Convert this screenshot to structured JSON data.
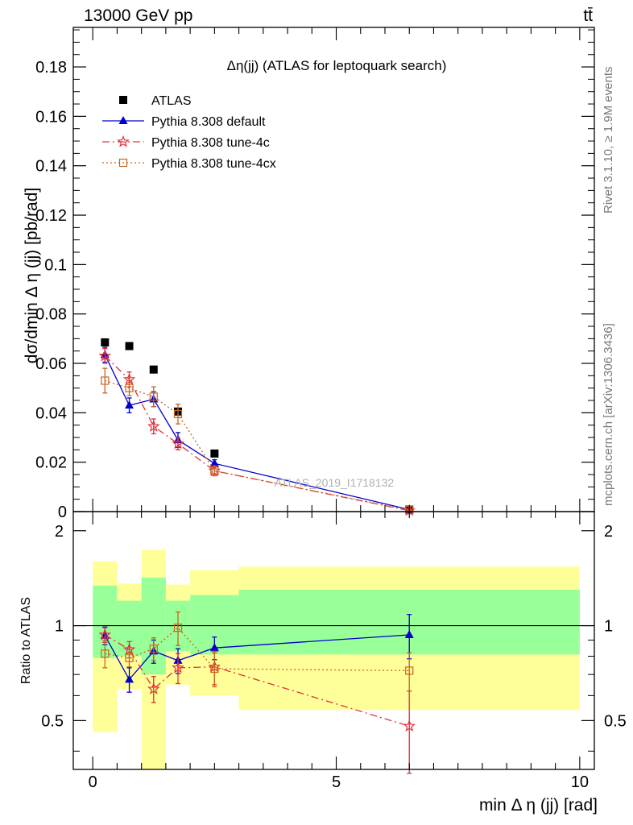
{
  "header": {
    "energy_label": "13000 GeV pp",
    "process_label": "tt̄",
    "plot_title": "Δη(jj) (ATLAS for leptoquark search)",
    "rivet_label": "Rivet 3.1.10, ≥ 1.9M events",
    "mcplots_label": "mcplots.cern.ch [arXiv:1306.3436]",
    "analysis_watermark": "ATLAS_2019_I1718132"
  },
  "colors": {
    "atlas": "#000000",
    "default": "#0000cc",
    "tune4c": "#e0303a",
    "tune4cx": "#c8641e",
    "band_outer": "#ffff99",
    "band_inner": "#99ff99"
  },
  "chart_data": [
    {
      "type": "line",
      "panel": "main",
      "xlabel": "",
      "ylabel": "dσ/dmin Δ η (jj) [pb/rad]",
      "title": "Δη(jj) (ATLAS for leptoquark search)",
      "xlim": [
        -0.4,
        10.3
      ],
      "ylim": [
        0,
        0.196
      ],
      "y_ticks": [
        {
          "v": 0.02,
          "label": "0.02"
        },
        {
          "v": 0.04,
          "label": "0.04"
        },
        {
          "v": 0.06,
          "label": "0.06"
        },
        {
          "v": 0.08,
          "label": "0.08"
        },
        {
          "v": 0.1,
          "label": "0.1"
        },
        {
          "v": 0.12,
          "label": "0.12"
        },
        {
          "v": 0.14,
          "label": "0.14"
        },
        {
          "v": 0.16,
          "label": "0.16"
        },
        {
          "v": 0.18,
          "label": "0.18"
        },
        {
          "v": 0,
          "label": "0"
        }
      ],
      "legend_position": "top-left",
      "series": [
        {
          "name": "ATLAS",
          "key": "atlas",
          "style": "marker",
          "points": [
            {
              "x": 0.25,
              "y": 0.0685,
              "err": 0
            },
            {
              "x": 0.75,
              "y": 0.067,
              "err": 0
            },
            {
              "x": 1.25,
              "y": 0.0575,
              "err": 0
            },
            {
              "x": 1.75,
              "y": 0.0405,
              "err": 0
            },
            {
              "x": 2.5,
              "y": 0.0235,
              "err": 0
            },
            {
              "x": 6.5,
              "y": 0.0008,
              "err": 0
            }
          ]
        },
        {
          "name": "Pythia 8.308 default",
          "key": "default",
          "style": "solid",
          "points": [
            {
              "x": 0.25,
              "y": 0.0635,
              "err": 0.003
            },
            {
              "x": 0.75,
              "y": 0.043,
              "err": 0.003
            },
            {
              "x": 1.25,
              "y": 0.0455,
              "err": 0.003
            },
            {
              "x": 1.75,
              "y": 0.029,
              "err": 0.003
            },
            {
              "x": 2.5,
              "y": 0.0195,
              "err": 0.0015
            },
            {
              "x": 6.5,
              "y": 0.0008,
              "err": 0.0001
            }
          ]
        },
        {
          "name": "Pythia 8.308 tune-4c",
          "key": "tune4c",
          "style": "dashdot",
          "points": [
            {
              "x": 0.25,
              "y": 0.063,
              "err": 0.003
            },
            {
              "x": 0.75,
              "y": 0.0535,
              "err": 0.003
            },
            {
              "x": 1.25,
              "y": 0.0345,
              "err": 0.003
            },
            {
              "x": 1.75,
              "y": 0.0275,
              "err": 0.0025
            },
            {
              "x": 2.5,
              "y": 0.0165,
              "err": 0.0015
            },
            {
              "x": 6.5,
              "y": 0.0004,
              "err": 0.0001
            }
          ]
        },
        {
          "name": "Pythia 8.308 tune-4cx",
          "key": "tune4cx",
          "style": "dotted",
          "points": [
            {
              "x": 0.25,
              "y": 0.053,
              "err": 0.005
            },
            {
              "x": 0.75,
              "y": 0.05,
              "err": 0.003
            },
            {
              "x": 1.25,
              "y": 0.0465,
              "err": 0.004
            },
            {
              "x": 1.75,
              "y": 0.0395,
              "err": 0.004
            },
            {
              "x": 2.5,
              "y": 0.0165,
              "err": 0.002
            },
            {
              "x": 6.5,
              "y": 0.0006,
              "err": 0.0001
            }
          ]
        }
      ]
    },
    {
      "type": "line",
      "panel": "ratio",
      "xlabel": "min Δ η (jj) [rad]",
      "ylabel": "Ratio to ATLAS",
      "xlim": [
        -0.4,
        10.3
      ],
      "ylim": [
        0.35,
        2.3
      ],
      "log_y": true,
      "x_ticks": [
        {
          "v": 0,
          "label": "0"
        },
        {
          "v": 5,
          "label": "5"
        },
        {
          "v": 10,
          "label": "10"
        }
      ],
      "y_ticks": [
        {
          "v": 0.5,
          "label": "0.5"
        },
        {
          "v": 1,
          "label": "1"
        },
        {
          "v": 2,
          "label": "2"
        }
      ],
      "bands": [
        {
          "x0": 0.0,
          "x1": 0.5,
          "outer": [
            0.46,
            1.6
          ],
          "inner": [
            0.79,
            1.34
          ]
        },
        {
          "x0": 0.5,
          "x1": 1.0,
          "outer": [
            0.63,
            1.36
          ],
          "inner": [
            0.8,
            1.2
          ]
        },
        {
          "x0": 1.0,
          "x1": 1.5,
          "outer": [
            0.35,
            1.74
          ],
          "inner": [
            0.7,
            1.42
          ]
        },
        {
          "x0": 1.5,
          "x1": 2.0,
          "outer": [
            0.65,
            1.35
          ],
          "inner": [
            0.83,
            1.2
          ]
        },
        {
          "x0": 2.0,
          "x1": 3.0,
          "outer": [
            0.6,
            1.5
          ],
          "inner": [
            0.81,
            1.25
          ]
        },
        {
          "x0": 3.0,
          "x1": 10.0,
          "outer": [
            0.54,
            1.54
          ],
          "inner": [
            0.81,
            1.3
          ]
        }
      ],
      "series": [
        {
          "name": "Pythia 8.308 default",
          "key": "default",
          "style": "solid",
          "points": [
            {
              "x": 0.25,
              "y": 0.93,
              "err": 0.06
            },
            {
              "x": 0.75,
              "y": 0.675,
              "err": 0.06
            },
            {
              "x": 1.25,
              "y": 0.83,
              "err": 0.07
            },
            {
              "x": 1.75,
              "y": 0.775,
              "err": 0.07
            },
            {
              "x": 2.5,
              "y": 0.85,
              "err": 0.07
            },
            {
              "x": 6.5,
              "y": 0.935,
              "err": 0.15
            }
          ]
        },
        {
          "name": "Pythia 8.308 tune-4c",
          "key": "tune4c",
          "style": "dashdot",
          "points": [
            {
              "x": 0.25,
              "y": 0.935,
              "err": 0.05
            },
            {
              "x": 0.75,
              "y": 0.84,
              "err": 0.05
            },
            {
              "x": 1.25,
              "y": 0.63,
              "err": 0.06
            },
            {
              "x": 1.75,
              "y": 0.735,
              "err": 0.08
            },
            {
              "x": 2.5,
              "y": 0.74,
              "err": 0.09
            },
            {
              "x": 6.5,
              "y": 0.48,
              "err": 0.14
            }
          ]
        },
        {
          "name": "Pythia 8.308 tune-4cx",
          "key": "tune4cx",
          "style": "dotted",
          "points": [
            {
              "x": 0.25,
              "y": 0.815,
              "err": 0.08
            },
            {
              "x": 0.75,
              "y": 0.79,
              "err": 0.05
            },
            {
              "x": 1.25,
              "y": 0.845,
              "err": 0.07
            },
            {
              "x": 1.75,
              "y": 0.985,
              "err": 0.12
            },
            {
              "x": 2.5,
              "y": 0.73,
              "err": 0.09
            },
            {
              "x": 6.5,
              "y": 0.72,
              "err": 0.1
            }
          ]
        }
      ]
    }
  ]
}
